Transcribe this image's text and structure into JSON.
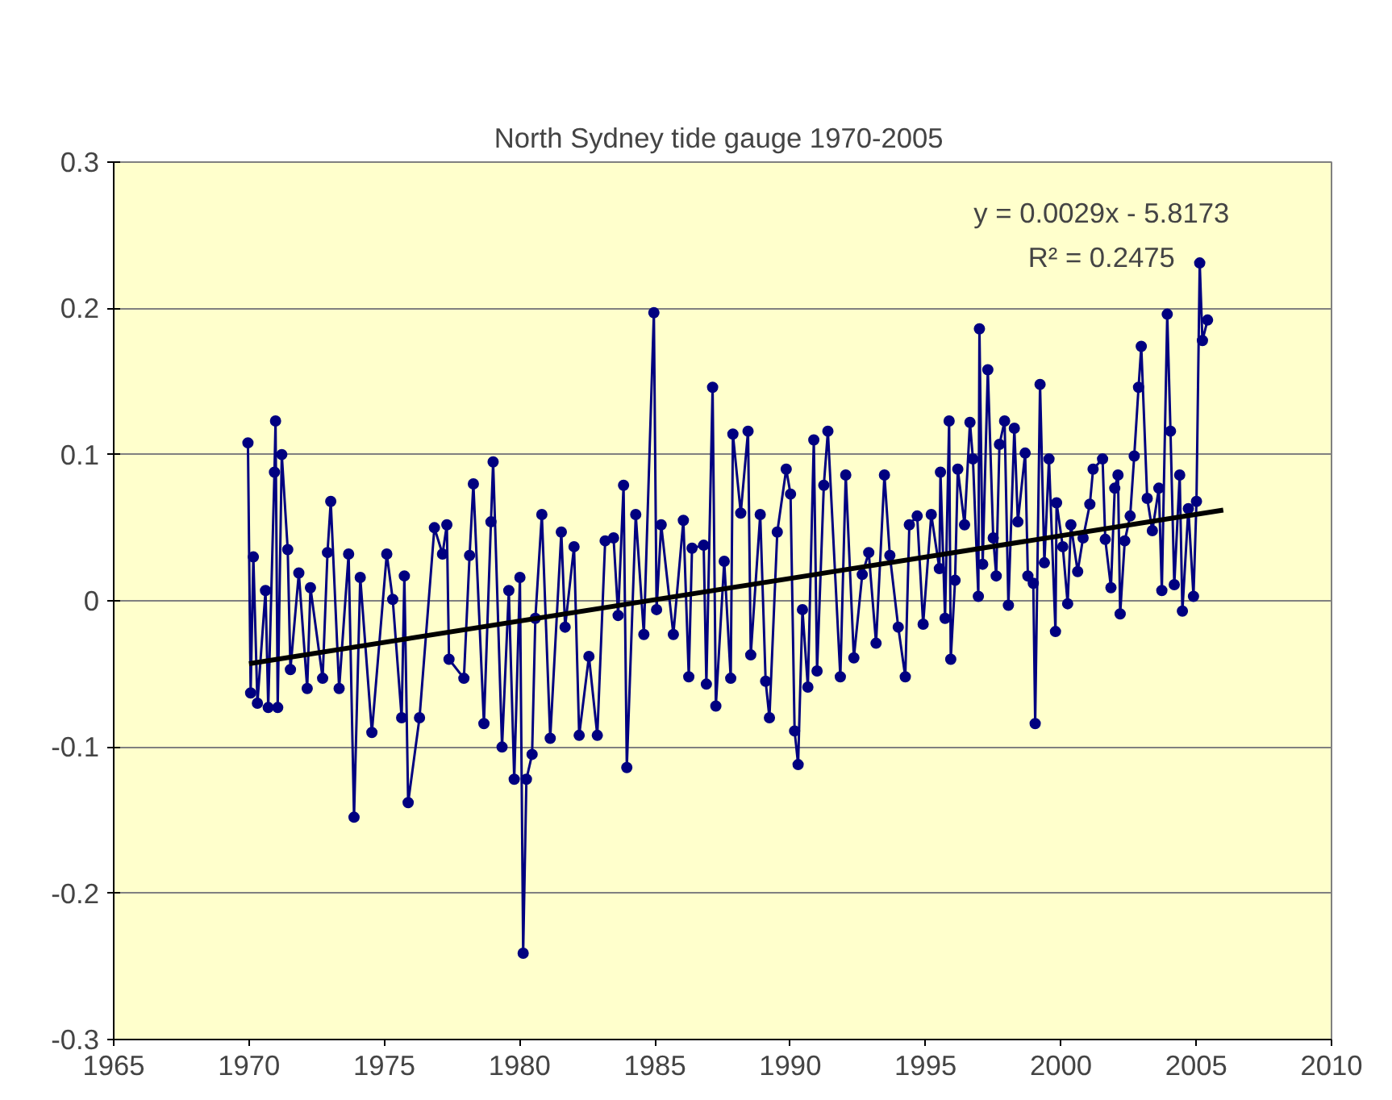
{
  "chart_data": {
    "type": "line",
    "title": "North Sydney tide gauge  1970-2005",
    "xlim": [
      1965,
      2010
    ],
    "xticks": [
      1965,
      1970,
      1975,
      1980,
      1985,
      1990,
      1995,
      2000,
      2005,
      2010
    ],
    "ylim": [
      -0.3,
      0.3
    ],
    "yticks": [
      -0.3,
      -0.2,
      -0.1,
      0,
      0.1,
      0.2,
      0.3
    ],
    "grid": "y",
    "marker": "circle",
    "line_style": "solid",
    "annotations": [
      "y = 0.0029x - 5.8173",
      "R² = 0.2475"
    ],
    "series": [
      {
        "color": "#000080",
        "x": [
          1969.96,
          1970.06,
          1970.16,
          1970.31,
          1970.61,
          1970.71,
          1970.94,
          1970.98,
          1971.06,
          1971.21,
          1971.43,
          1971.53,
          1971.84,
          1972.15,
          1972.27,
          1972.72,
          1972.9,
          1973.02,
          1973.33,
          1973.68,
          1973.88,
          1974.11,
          1974.54,
          1975.09,
          1975.31,
          1975.64,
          1975.74,
          1975.88,
          1976.3,
          1976.85,
          1977.15,
          1977.31,
          1977.39,
          1977.94,
          1978.15,
          1978.29,
          1978.68,
          1978.94,
          1979.02,
          1979.35,
          1979.6,
          1979.8,
          1980.01,
          1980.13,
          1980.25,
          1980.46,
          1980.58,
          1980.82,
          1981.13,
          1981.54,
          1981.68,
          1982.01,
          1982.2,
          1982.56,
          1982.87,
          1983.16,
          1983.47,
          1983.64,
          1983.84,
          1983.96,
          1984.29,
          1984.59,
          1984.96,
          1985.06,
          1985.23,
          1985.68,
          1986.05,
          1986.25,
          1986.37,
          1986.8,
          1986.9,
          1987.13,
          1987.25,
          1987.56,
          1987.8,
          1987.88,
          1988.17,
          1988.44,
          1988.54,
          1988.89,
          1989.09,
          1989.23,
          1989.52,
          1989.85,
          1990.01,
          1990.16,
          1990.29,
          1990.45,
          1990.65,
          1990.87,
          1990.99,
          1991.24,
          1991.39,
          1991.85,
          1992.05,
          1992.35,
          1992.66,
          1992.9,
          1993.17,
          1993.48,
          1993.68,
          1993.99,
          1994.25,
          1994.4,
          1994.69,
          1994.91,
          1995.21,
          1995.51,
          1995.55,
          1995.72,
          1995.87,
          1995.93,
          1996.09,
          1996.19,
          1996.44,
          1996.64,
          1996.75,
          1996.95,
          1996.99,
          1997.11,
          1997.3,
          1997.5,
          1997.61,
          1997.73,
          1997.92,
          1998.06,
          1998.28,
          1998.41,
          1998.68,
          1998.78,
          1998.98,
          1999.05,
          1999.23,
          1999.39,
          1999.56,
          1999.8,
          1999.84,
          2000.07,
          2000.25,
          2000.37,
          2000.62,
          2000.82,
          2001.07,
          2001.19,
          2001.54,
          2001.64,
          2001.85,
          2001.99,
          2002.11,
          2002.19,
          2002.36,
          2002.56,
          2002.71,
          2002.87,
          2002.97,
          2003.19,
          2003.38,
          2003.62,
          2003.73,
          2003.93,
          2004.05,
          2004.19,
          2004.39,
          2004.49,
          2004.71,
          2004.9,
          2005.01,
          2005.13,
          2005.23,
          2005.42
        ],
        "values": [
          0.108,
          -0.063,
          0.03,
          -0.07,
          0.007,
          -0.073,
          0.088,
          0.123,
          -0.073,
          0.1,
          0.035,
          -0.047,
          0.019,
          -0.06,
          0.009,
          -0.053,
          0.033,
          0.068,
          -0.06,
          0.032,
          -0.148,
          0.016,
          -0.09,
          0.032,
          0.001,
          -0.08,
          0.017,
          -0.138,
          -0.08,
          0.05,
          0.032,
          0.052,
          -0.04,
          -0.053,
          0.031,
          0.08,
          -0.084,
          0.054,
          0.095,
          -0.1,
          0.007,
          -0.122,
          0.016,
          -0.241,
          -0.122,
          -0.105,
          -0.012,
          0.059,
          -0.094,
          0.047,
          -0.018,
          0.037,
          -0.092,
          -0.038,
          -0.092,
          0.041,
          0.043,
          -0.01,
          0.079,
          -0.114,
          0.059,
          -0.023,
          0.197,
          -0.006,
          0.052,
          -0.023,
          0.055,
          -0.052,
          0.036,
          0.038,
          -0.057,
          0.146,
          -0.072,
          0.027,
          -0.053,
          0.114,
          0.06,
          0.116,
          -0.037,
          0.059,
          -0.055,
          -0.08,
          0.047,
          0.09,
          0.073,
          -0.089,
          -0.112,
          -0.006,
          -0.059,
          0.11,
          -0.048,
          0.079,
          0.116,
          -0.052,
          0.086,
          -0.039,
          0.018,
          0.033,
          -0.029,
          0.086,
          0.031,
          -0.018,
          -0.052,
          0.052,
          0.058,
          -0.016,
          0.059,
          0.022,
          0.088,
          -0.012,
          0.123,
          -0.04,
          0.014,
          0.09,
          0.052,
          0.122,
          0.097,
          0.003,
          0.186,
          0.025,
          0.158,
          0.043,
          0.017,
          0.107,
          0.123,
          -0.003,
          0.118,
          0.054,
          0.101,
          0.017,
          0.012,
          -0.084,
          0.148,
          0.026,
          0.097,
          -0.021,
          0.067,
          0.037,
          -0.002,
          0.052,
          0.02,
          0.043,
          0.066,
          0.09,
          0.097,
          0.042,
          0.009,
          0.077,
          0.086,
          -0.009,
          0.041,
          0.058,
          0.099,
          0.146,
          0.174,
          0.07,
          0.048,
          0.077,
          0.007,
          0.196,
          0.116,
          0.011,
          0.086,
          -0.007,
          0.063,
          0.003,
          0.068,
          0.231,
          0.178,
          0.192
        ]
      },
      {
        "type": "line",
        "color": "#000000",
        "marker": "none",
        "x": [
          1970,
          2006
        ],
        "values": [
          -0.043,
          0.062
        ]
      }
    ]
  }
}
